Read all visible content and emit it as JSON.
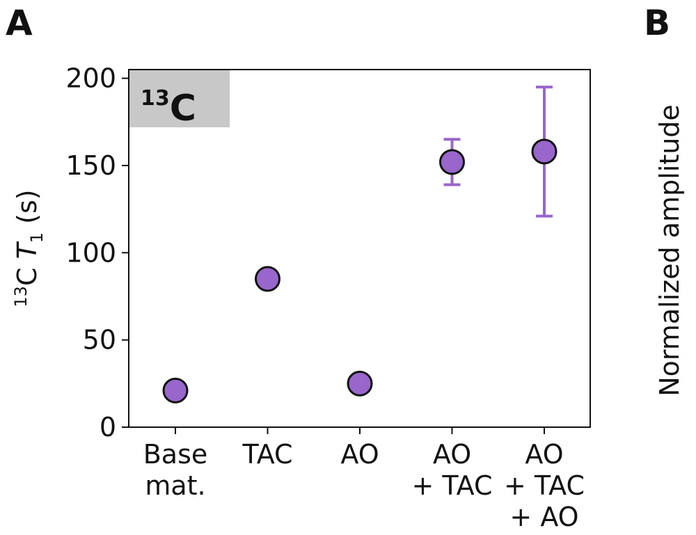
{
  "panels": {
    "a_label": "A",
    "b_label": "B"
  },
  "panel_b": {
    "ylabel": "Normalized amplitude"
  },
  "chart_data": {
    "type": "scatter",
    "badge": {
      "sup": "13",
      "text": "C"
    },
    "ylabel": {
      "sup": "13",
      "main": "C ",
      "italic": "T",
      "sub": "1",
      "unit": " (s)"
    },
    "ylim": [
      0,
      205
    ],
    "yticks": [
      0,
      50,
      100,
      150,
      200
    ],
    "categories": [
      [
        "Base",
        "mat."
      ],
      [
        "TAC"
      ],
      [
        "AO"
      ],
      [
        "AO",
        "+ TAC"
      ],
      [
        "AO",
        "+ TAC",
        "+ AO"
      ]
    ],
    "values": [
      21,
      85,
      25,
      152,
      158
    ],
    "error_low": [
      null,
      null,
      null,
      139,
      121
    ],
    "error_high": [
      null,
      null,
      null,
      165,
      195
    ],
    "marker_color": "#9966cc",
    "errorbar_color": "#9966cc",
    "badge_color": "#c8c8c8",
    "grid": false,
    "legend": "none"
  }
}
